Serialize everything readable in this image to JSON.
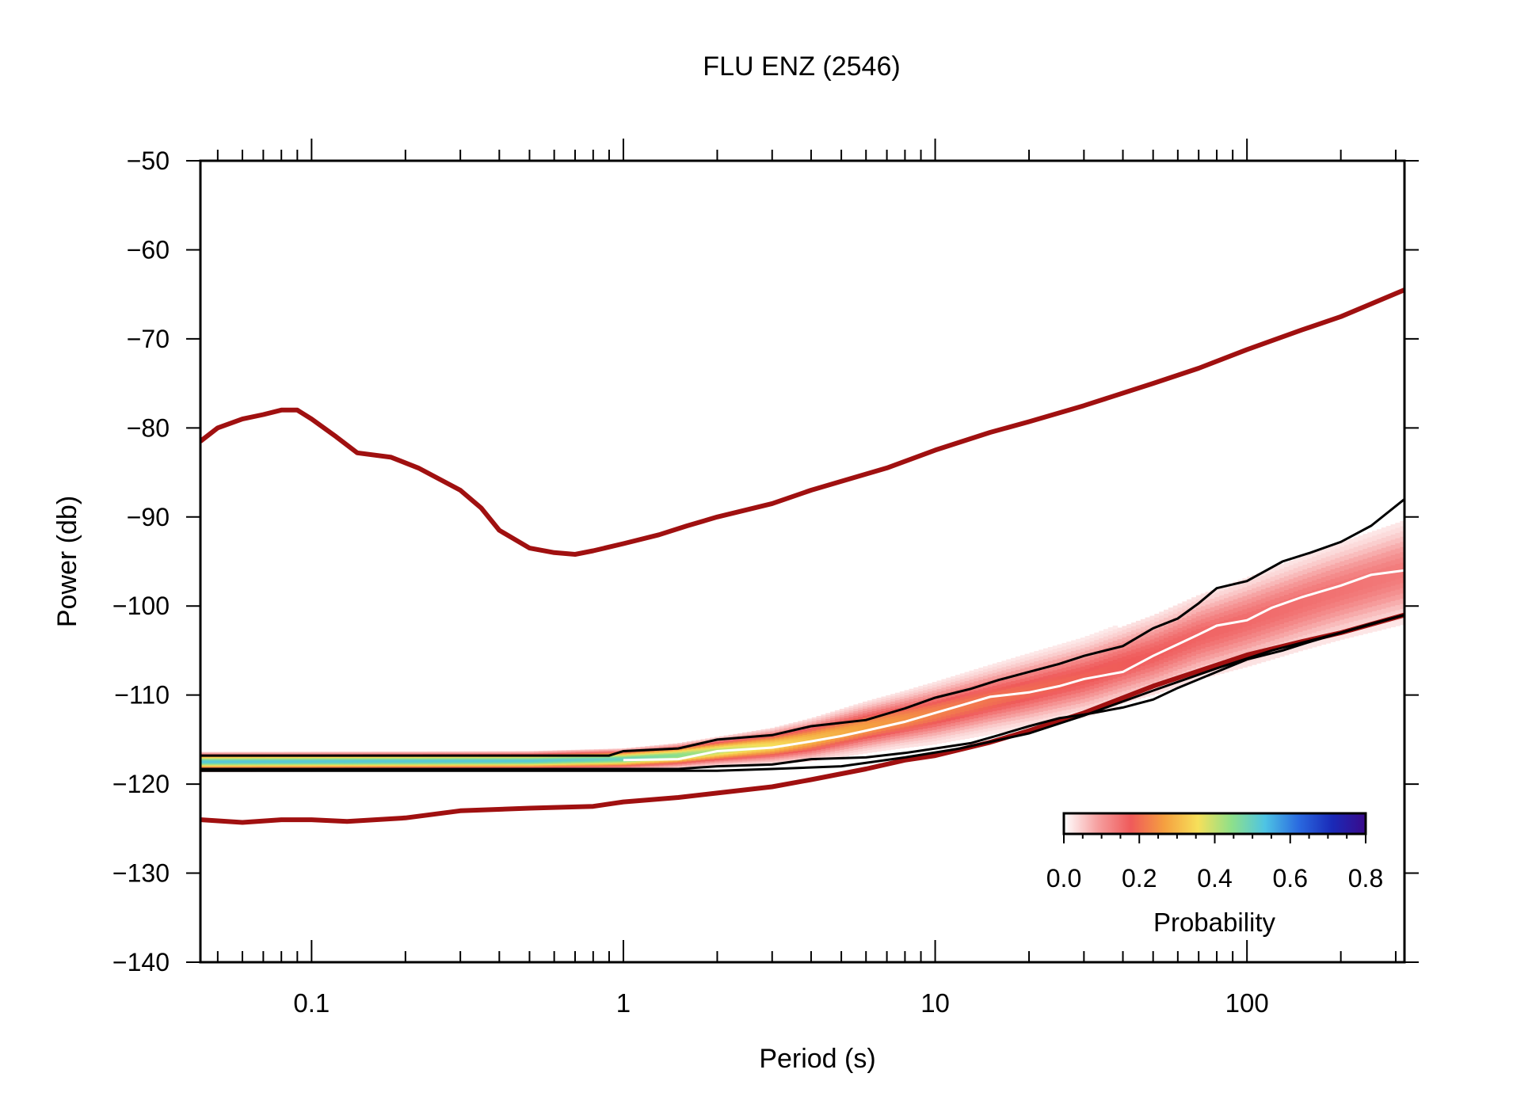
{
  "chart_data": {
    "type": "heatmap",
    "title": "FLU ENZ (2546)",
    "xlabel": "Period (s)",
    "ylabel": "Power (db)",
    "x_scale": "log",
    "xlim": [
      0.044,
      320
    ],
    "ylim": [
      -140,
      -50
    ],
    "x_ticks": [
      {
        "value": 0.1,
        "label": "0.1"
      },
      {
        "value": 1,
        "label": "1"
      },
      {
        "value": 10,
        "label": "10"
      },
      {
        "value": 100,
        "label": "100"
      }
    ],
    "y_ticks": [
      {
        "value": -50,
        "label": "−50"
      },
      {
        "value": -60,
        "label": "−60"
      },
      {
        "value": -70,
        "label": "−70"
      },
      {
        "value": -80,
        "label": "−80"
      },
      {
        "value": -90,
        "label": "−90"
      },
      {
        "value": -100,
        "label": "−100"
      },
      {
        "value": -110,
        "label": "−110"
      },
      {
        "value": -120,
        "label": "−120"
      },
      {
        "value": -130,
        "label": "−130"
      },
      {
        "value": -140,
        "label": "−140"
      }
    ],
    "grid": false,
    "colorbar": {
      "label": "Probability",
      "range": [
        0,
        0.8
      ],
      "ticks": [
        {
          "value": 0.0,
          "label": "0.0"
        },
        {
          "value": 0.2,
          "label": "0.2"
        },
        {
          "value": 0.4,
          "label": "0.4"
        },
        {
          "value": 0.6,
          "label": "0.6"
        },
        {
          "value": 0.8,
          "label": "0.8"
        }
      ],
      "colors": [
        "#ffffff",
        "#f6a0a0",
        "#ef5a5a",
        "#f5a040",
        "#f6e05a",
        "#8ee08a",
        "#4ec4e4",
        "#2a6ae0",
        "#1a2ab8",
        "#3a0a8a"
      ],
      "placement": "bottom-right"
    },
    "noise_models": {
      "color": "#a01010",
      "high": {
        "x": [
          0.044,
          0.05,
          0.06,
          0.07,
          0.08,
          0.09,
          0.1,
          0.12,
          0.14,
          0.18,
          0.22,
          0.3,
          0.35,
          0.4,
          0.5,
          0.6,
          0.7,
          0.8,
          1,
          1.3,
          1.6,
          2,
          3,
          4,
          5,
          7,
          10,
          15,
          20,
          30,
          50,
          70,
          100,
          150,
          200,
          320
        ],
        "y": [
          -81.5,
          -80,
          -79,
          -78.5,
          -78,
          -78,
          -79,
          -81,
          -82.8,
          -83.3,
          -84.5,
          -87,
          -89,
          -91.5,
          -93.5,
          -94,
          -94.2,
          -93.8,
          -93,
          -92,
          -91,
          -90,
          -88.5,
          -87,
          -86,
          -84.5,
          -82.5,
          -80.5,
          -79.3,
          -77.5,
          -75,
          -73.3,
          -71.2,
          -69,
          -67.5,
          -64.5
        ]
      },
      "low": {
        "x": [
          0.044,
          0.06,
          0.08,
          0.1,
          0.13,
          0.2,
          0.3,
          0.5,
          0.8,
          1,
          1.5,
          2,
          3,
          4,
          6,
          8,
          10,
          15,
          20,
          30,
          50,
          70,
          100,
          150,
          200,
          320
        ],
        "y": [
          -124,
          -124.3,
          -124,
          -124,
          -124.2,
          -123.8,
          -123,
          -122.7,
          -122.5,
          -122,
          -121.5,
          -121,
          -120.3,
          -119.5,
          -118.3,
          -117.3,
          -116.8,
          -115.3,
          -114,
          -112,
          -109,
          -107.3,
          -105.5,
          -104,
          -103,
          -101
        ]
      }
    },
    "percentiles": {
      "color": "#000000",
      "upper": {
        "x": [
          0.044,
          0.9,
          1,
          1.5,
          2,
          3,
          4,
          6,
          8,
          10,
          13,
          16,
          20,
          25,
          30,
          40,
          50,
          60,
          70,
          80,
          100,
          130,
          160,
          200,
          250,
          320
        ],
        "y": [
          -116.8,
          -116.8,
          -116.3,
          -116,
          -115,
          -114.5,
          -113.5,
          -112.8,
          -111.5,
          -110.3,
          -109.3,
          -108.3,
          -107.4,
          -106.5,
          -105.6,
          -104.5,
          -102.5,
          -101.4,
          -99.7,
          -98,
          -97.2,
          -95,
          -94,
          -92.8,
          -91,
          -88
        ]
      },
      "lower": {
        "x": [
          0.044,
          1,
          1.5,
          2,
          3,
          4,
          6,
          8,
          10,
          13,
          16,
          20,
          25,
          30,
          40,
          50,
          60,
          80,
          100,
          130,
          160,
          200,
          250,
          320
        ],
        "y": [
          -118.3,
          -118.3,
          -118.3,
          -118,
          -117.8,
          -117.2,
          -117,
          -116.5,
          -116,
          -115.4,
          -114.5,
          -113.5,
          -112.6,
          -112.2,
          -111.4,
          -110.5,
          -109.2,
          -107.4,
          -106,
          -105,
          -104,
          -103,
          -102,
          -101
        ]
      },
      "lowest": {
        "x": [
          0.044,
          2,
          3,
          5,
          8,
          12,
          20,
          30,
          50,
          80,
          120,
          200,
          320
        ],
        "y": [
          -118.5,
          -118.5,
          -118.3,
          -118,
          -117,
          -116,
          -114.3,
          -112.3,
          -109.5,
          -107,
          -105,
          -103,
          -101
        ]
      }
    },
    "mode": {
      "color": "#ffffff",
      "x": [
        1,
        1.5,
        2,
        3,
        4,
        5,
        6,
        8,
        10,
        12,
        15,
        20,
        25,
        30,
        40,
        50,
        60,
        70,
        80,
        100,
        120,
        150,
        200,
        250,
        320
      ],
      "y": [
        -117.3,
        -117.2,
        -116.3,
        -115.9,
        -115.2,
        -114.6,
        -114,
        -113,
        -112,
        -111.2,
        -110.2,
        -109.7,
        -109,
        -108.2,
        -107.4,
        -105.6,
        -104.3,
        -103.2,
        -102.2,
        -101.6,
        -100.2,
        -99,
        -97.7,
        -96.5,
        -96
      ]
    },
    "pdf_band": {
      "x": [
        0.044,
        0.5,
        1,
        1.5,
        2,
        3,
        4,
        6,
        8,
        10,
        15,
        20,
        30,
        50,
        70,
        100,
        150,
        200,
        320
      ],
      "center": [
        -117.5,
        -117.4,
        -117.2,
        -116.8,
        -116.3,
        -115.7,
        -115,
        -113.6,
        -112.7,
        -112,
        -110.5,
        -109.5,
        -108,
        -105.5,
        -103.5,
        -101.8,
        -99.7,
        -98.3,
        -96.2
      ],
      "halfwidth": [
        1.1,
        1.1,
        1.2,
        1.4,
        1.6,
        2.0,
        2.4,
        2.9,
        3.2,
        3.5,
        3.9,
        4.2,
        4.5,
        4.9,
        5.2,
        5.5,
        5.8,
        6.0,
        6.4
      ]
    }
  }
}
